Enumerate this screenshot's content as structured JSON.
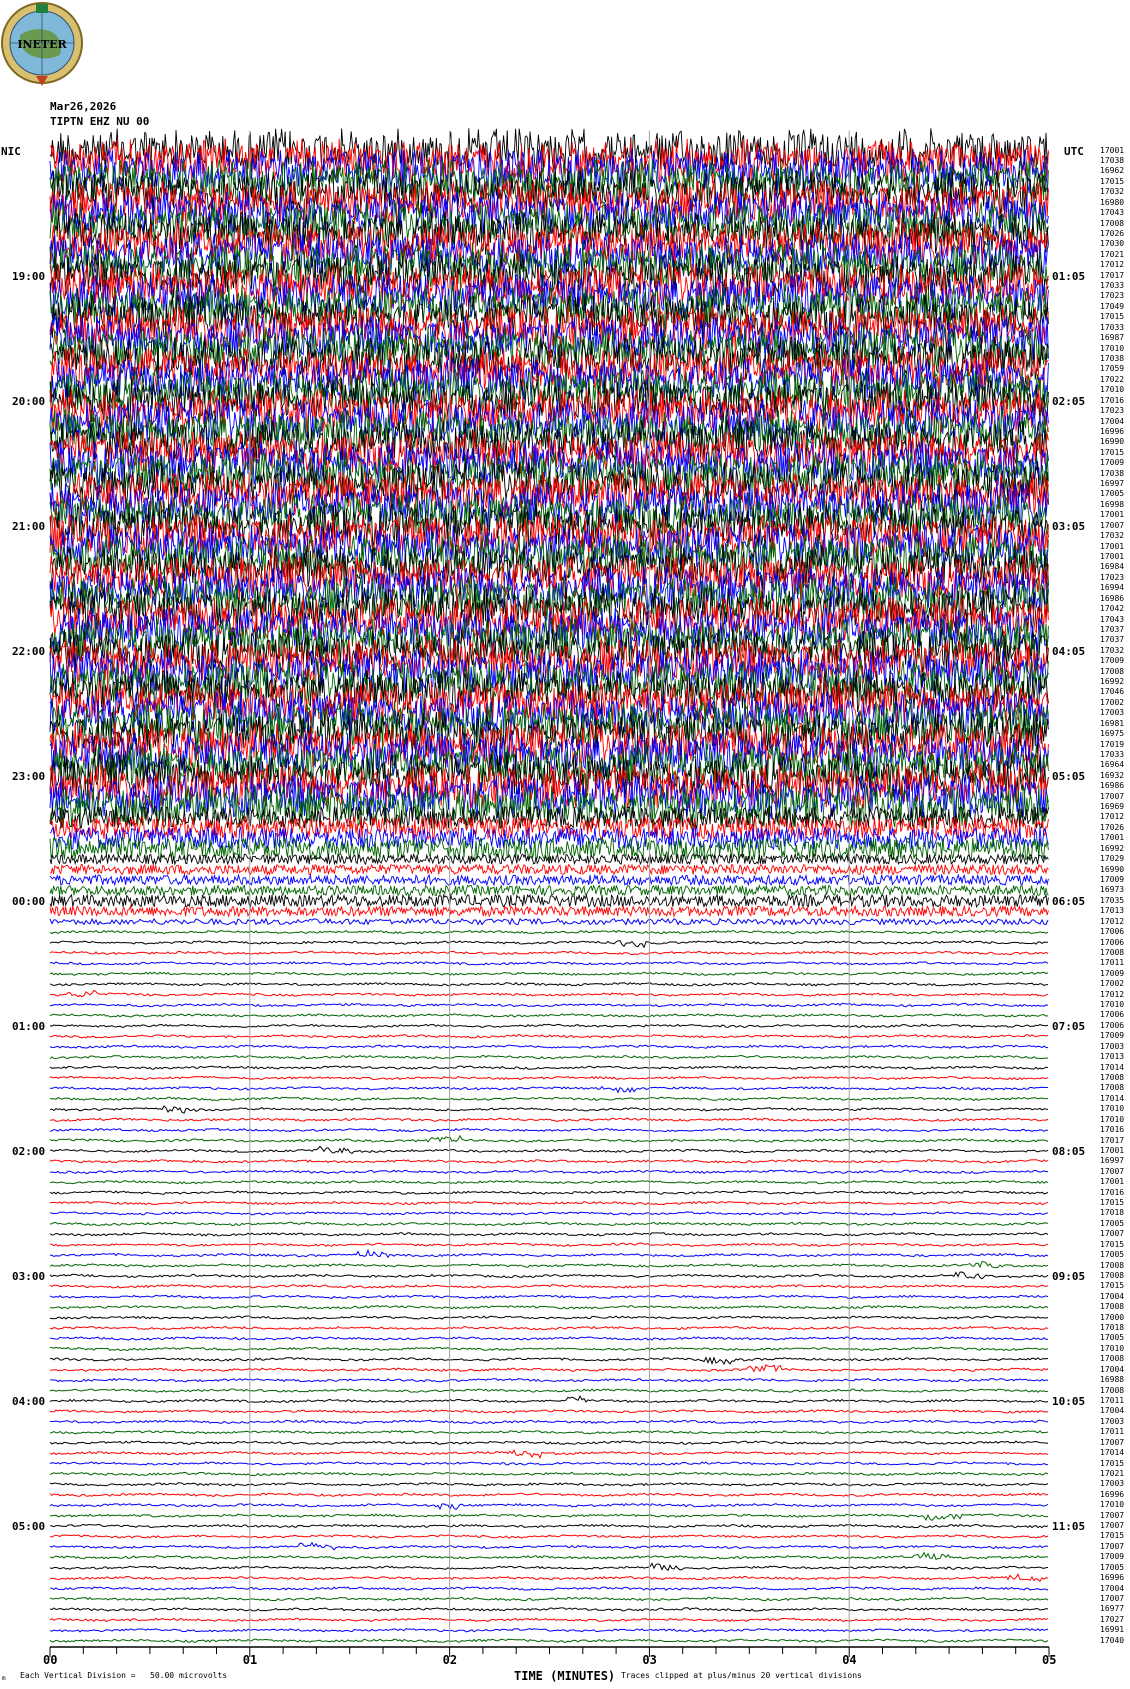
{
  "header": {
    "logo_text": "INETER",
    "date": "Mar26,2026",
    "station": "TIPTN EHZ NU 00"
  },
  "left_axis": {
    "zone": "NIC",
    "hours": [
      "19:00",
      "20:00",
      "21:00",
      "22:00",
      "23:00",
      "00:00",
      "01:00",
      "02:00",
      "03:00",
      "04:00",
      "05:00"
    ]
  },
  "right_axis": {
    "zone": "UTC",
    "hours": [
      "01:05",
      "02:05",
      "03:05",
      "04:05",
      "05:05",
      "06:05",
      "07:05",
      "08:05",
      "09:05",
      "10:05",
      "11:05"
    ],
    "trace_values": [
      17001,
      17038,
      16962,
      17015,
      17032,
      16980,
      17043,
      17008,
      17026,
      17030,
      17021,
      17012,
      17017,
      17033,
      17023,
      17049,
      17015,
      17033,
      16987,
      17010,
      17038,
      17059,
      17022,
      17010,
      17016,
      17023,
      17004,
      16996,
      16990,
      17015,
      17009,
      17038,
      16997,
      17005,
      16998,
      17001,
      17007,
      17032,
      17001,
      17001,
      16984,
      17023,
      16994,
      16986,
      17042,
      17043,
      17037,
      17037,
      17032,
      17009,
      17008,
      16992,
      17046,
      17002,
      17003,
      16981,
      16975,
      17019,
      17033,
      16964,
      16932,
      16986,
      17007,
      16969,
      17012,
      17026,
      17001,
      16992,
      17029,
      16990,
      17009,
      16973,
      17035,
      17013,
      17012,
      17006,
      17006,
      17008,
      17011,
      17009,
      17002,
      17012,
      17010,
      17006,
      17006,
      17009,
      17003,
      17013,
      17014,
      17008,
      17008,
      17014,
      17010,
      17010,
      17016,
      17017,
      17001,
      16997,
      17007,
      17001,
      17016,
      17015,
      17018,
      17005,
      17007,
      17015,
      17005,
      17008,
      17008,
      17015,
      17004,
      17008,
      17000,
      17018,
      17005,
      17010,
      17008,
      17004,
      16988,
      17008,
      17011,
      17004,
      17003,
      17011,
      17007,
      17014,
      17015,
      17021,
      17003,
      16996,
      17010,
      17007,
      17007,
      17015,
      17007,
      17009,
      17005,
      16996,
      17004,
      17007,
      16977,
      17027,
      16991,
      17040
    ]
  },
  "footer": {
    "corner_mark": "m",
    "scale_note": "Each Vertical Division =   50.00 microvolts",
    "xlabel": "TIME (MINUTES)",
    "clip_note": "Traces clipped at plus/minus 20 vertical divisions"
  },
  "chart_data": {
    "type": "line",
    "subtype": "helicorder",
    "xlabel": "TIME (MINUTES)",
    "xlim": [
      0,
      5
    ],
    "x_tick_labels": [
      "00",
      "01",
      "02",
      "03",
      "04",
      "05"
    ],
    "minor_tick_seconds": 10,
    "trace_minutes": 5,
    "trace_count": 144,
    "hours_shown": 12,
    "vertical_grid_minutes": [
      1,
      2,
      3,
      4
    ],
    "trace_colors": [
      "#000000",
      "#ff0000",
      "#0000ff",
      "#006400"
    ],
    "grid_color": "#a0a0a0"
  }
}
